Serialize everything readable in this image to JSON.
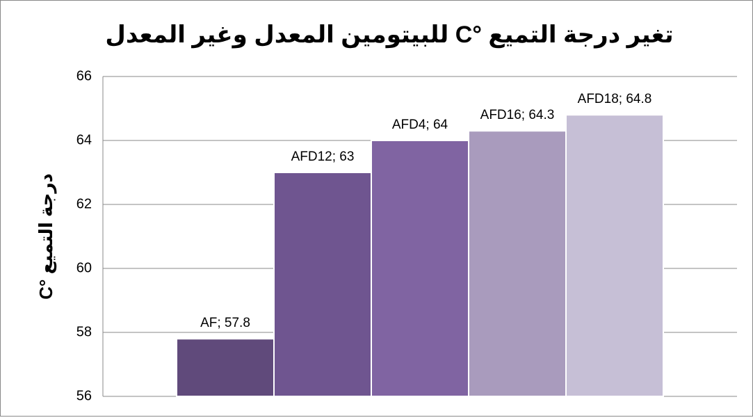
{
  "chart_data": {
    "type": "bar",
    "title": "تغير درجة التميع °C للبيتومين المعدل وغير المعدل",
    "y_label": "درجة التميع °C",
    "categories": [
      "AF",
      "AFD12",
      "AFD4",
      "AFD16",
      "AFD18"
    ],
    "values": [
      57.8,
      63,
      64,
      64.3,
      64.8
    ],
    "value_labels": [
      "AF; 57.8",
      "AFD12; 63",
      "AFD4; 64",
      "AFD16; 64.3",
      "AFD18; 64.8"
    ],
    "colors": [
      "#604a7b",
      "#6f5590",
      "#8064a2",
      "#a99bbd",
      "#c6bfd6"
    ],
    "ylim": [
      56,
      66
    ],
    "yticks": [
      56,
      58,
      60,
      62,
      64,
      66
    ],
    "grid": true
  }
}
